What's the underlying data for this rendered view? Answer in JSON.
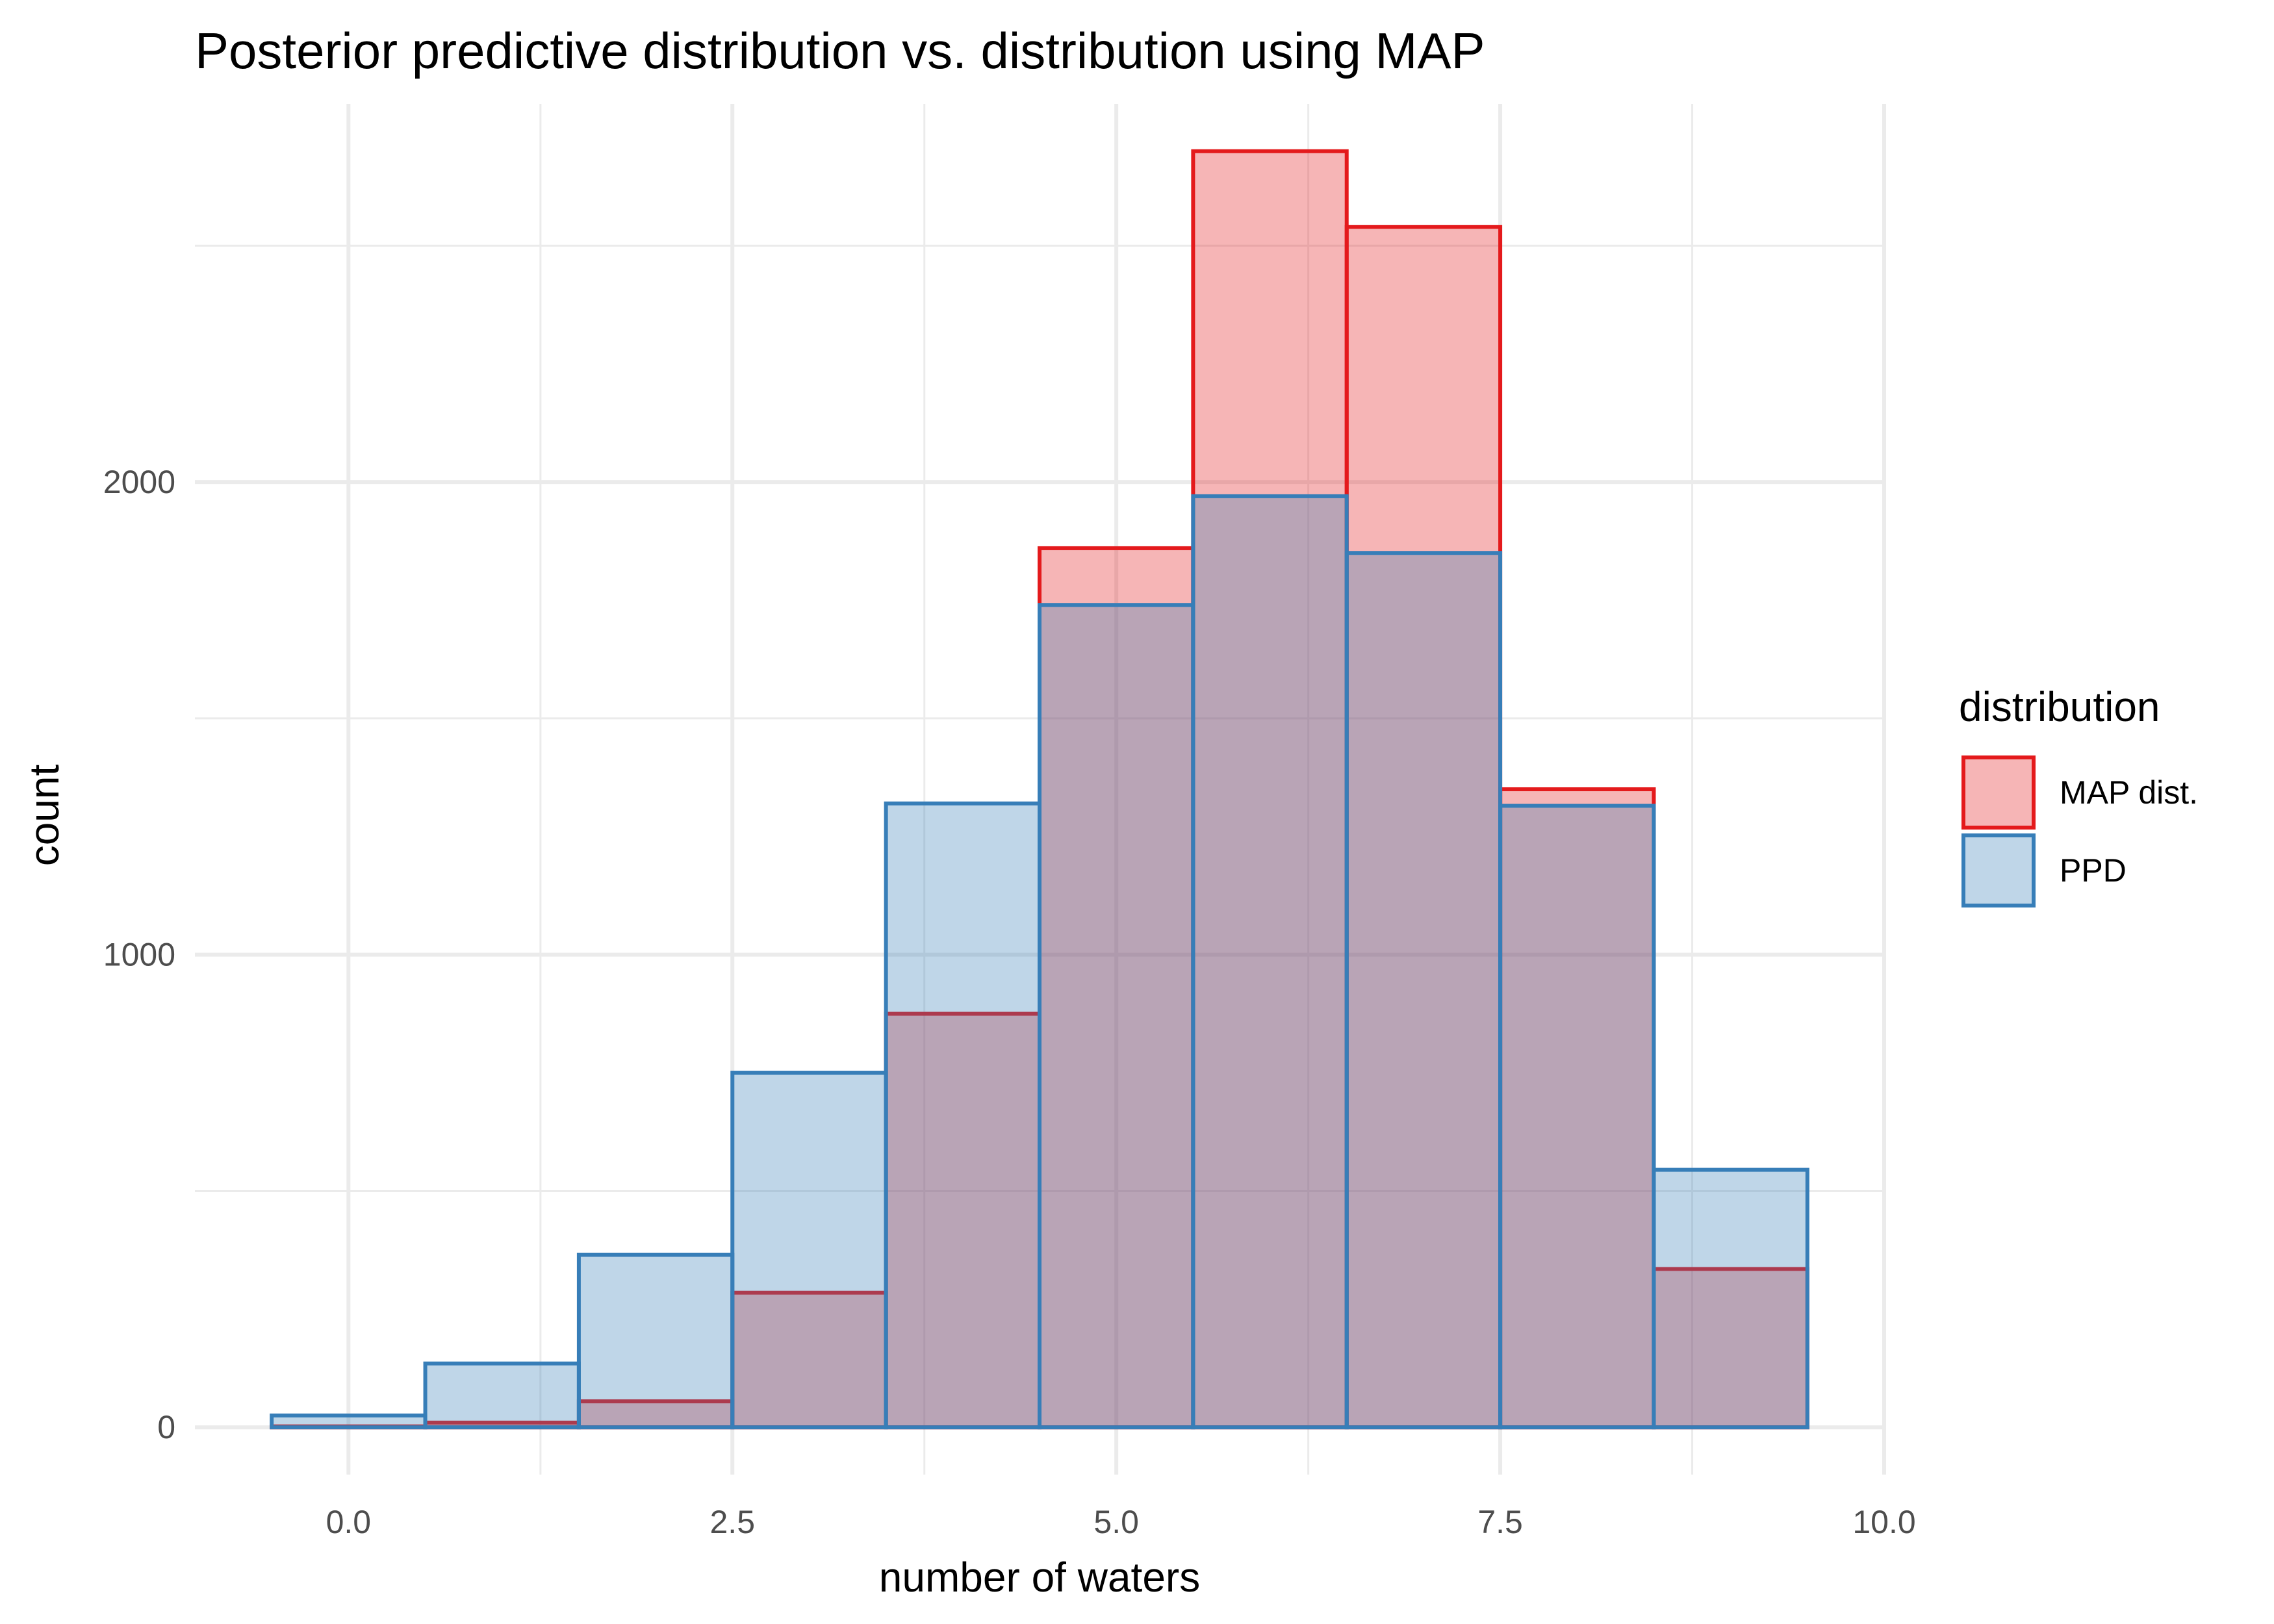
{
  "chart_data": {
    "type": "bar",
    "subtype": "overlaid-histogram",
    "title": "Posterior predictive distribution vs. distribution using MAP",
    "xlabel": "number of waters",
    "ylabel": "count",
    "xlim": [
      -0.5,
      10.0
    ],
    "ylim": [
      0,
      2700
    ],
    "x_ticks": [
      0.0,
      2.5,
      5.0,
      7.5,
      10.0
    ],
    "x_tick_labels": [
      "0.0",
      "2.5",
      "5.0",
      "7.5",
      "10.0"
    ],
    "y_ticks": [
      0,
      1000,
      2000
    ],
    "y_tick_labels": [
      "0",
      "1000",
      "2000"
    ],
    "bin_width": 1,
    "bins": [
      0,
      1,
      2,
      3,
      4,
      5,
      6,
      7,
      8,
      9
    ],
    "grid": true,
    "legend": {
      "title": "distribution",
      "position": "right"
    },
    "series": [
      {
        "name": "MAP dist.",
        "fill": "#E41A1C",
        "stroke": "#E41A1C",
        "values": [
          2,
          10,
          55,
          285,
          875,
          1860,
          2700,
          2540,
          1350,
          335
        ]
      },
      {
        "name": "PPD",
        "fill": "#377EB8",
        "stroke": "#377EB8",
        "values": [
          25,
          135,
          365,
          750,
          1320,
          1740,
          1970,
          1850,
          1315,
          545
        ]
      }
    ]
  }
}
